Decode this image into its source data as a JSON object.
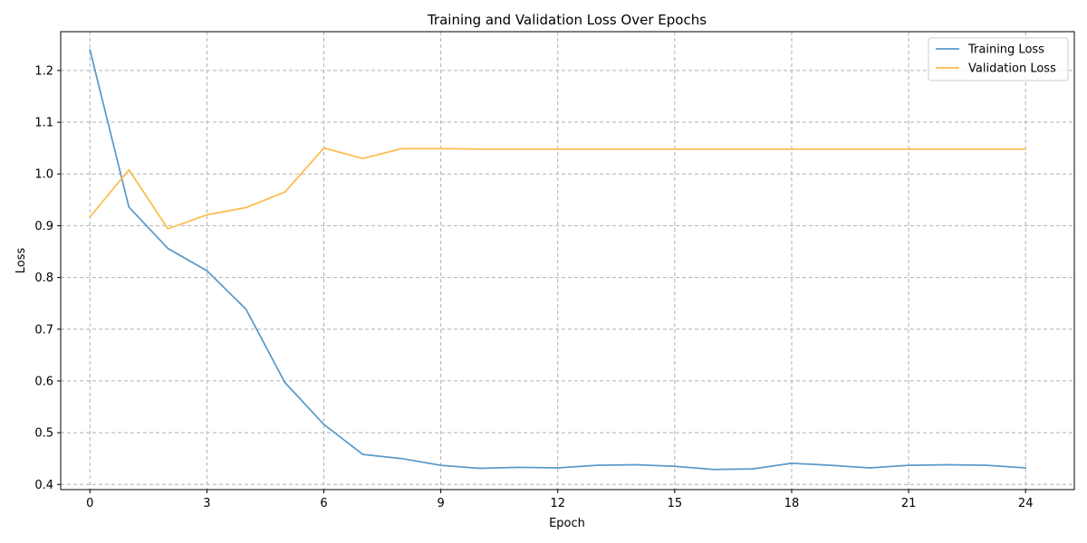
{
  "chart_data": {
    "type": "line",
    "title": "Training and Validation Loss Over Epochs",
    "xlabel": "Epoch",
    "ylabel": "Loss",
    "xlim": [
      -0.75,
      25.25
    ],
    "ylim": [
      0.39,
      1.275
    ],
    "xticks": [
      0,
      3,
      6,
      9,
      12,
      15,
      18,
      21,
      24
    ],
    "yticks": [
      0.4,
      0.5,
      0.6,
      0.7,
      0.8,
      0.9,
      1.0,
      1.1,
      1.2
    ],
    "grid": true,
    "legend_position": "top-right",
    "x": [
      0,
      1,
      2,
      3,
      4,
      5,
      6,
      7,
      8,
      9,
      10,
      11,
      12,
      13,
      14,
      15,
      16,
      17,
      18,
      19,
      20,
      21,
      22,
      23,
      24
    ],
    "series": [
      {
        "name": "Training Loss",
        "color": "#5b9ac9",
        "values": [
          1.24,
          0.936,
          0.856,
          0.813,
          0.739,
          0.597,
          0.516,
          0.458,
          0.45,
          0.437,
          0.431,
          0.433,
          0.432,
          0.437,
          0.438,
          0.435,
          0.429,
          0.43,
          0.441,
          0.437,
          0.432,
          0.437,
          0.438,
          0.437,
          0.432
        ]
      },
      {
        "name": "Validation Loss",
        "color": "#fdbb4e",
        "values": [
          0.917,
          1.008,
          0.894,
          0.921,
          0.935,
          0.965,
          1.05,
          1.03,
          1.049,
          1.049,
          1.048,
          1.048,
          1.048,
          1.048,
          1.048,
          1.048,
          1.048,
          1.048,
          1.048,
          1.048,
          1.048,
          1.048,
          1.048,
          1.048,
          1.048
        ]
      }
    ]
  }
}
